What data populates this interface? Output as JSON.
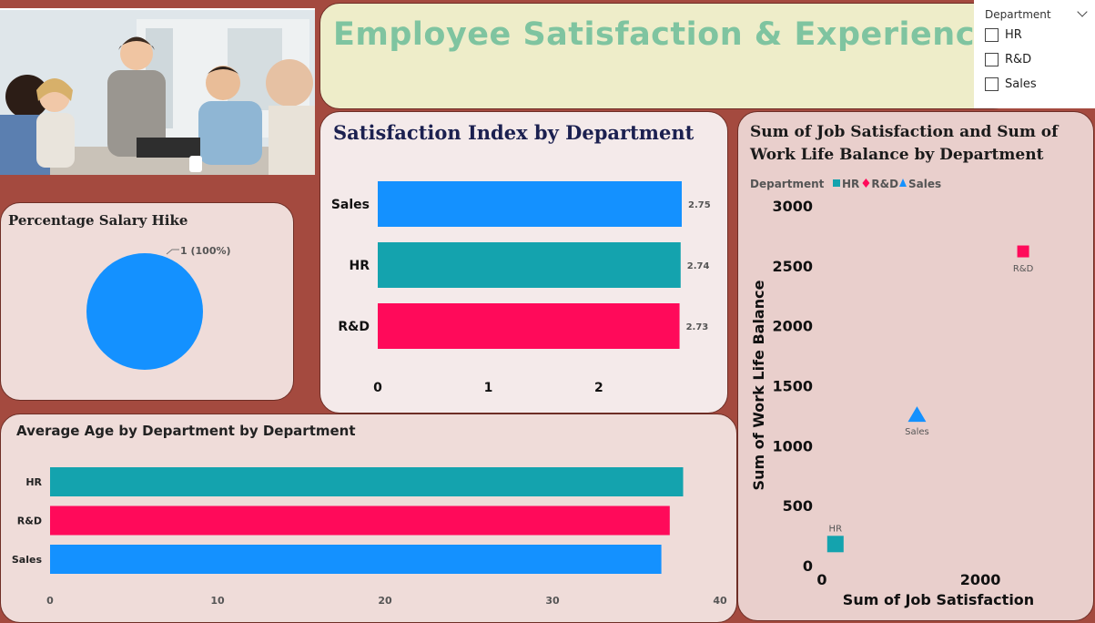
{
  "dashboard": {
    "title": "Employee Satisfaction & Experience",
    "photo_alt": "Team of employees laughing in an office"
  },
  "slicer": {
    "title": "Department",
    "options": [
      "HR",
      "R&D",
      "Sales"
    ]
  },
  "colors": {
    "HR": "#14a3ae",
    "R&D": "#ff0a5a",
    "Sales": "#1491ff"
  },
  "pie_title": "Percentage Salary Hike",
  "chart_data": [
    {
      "type": "bar",
      "id": "satisfaction-index",
      "title": "Satisfaction Index by Department",
      "categories": [
        "Sales",
        "HR",
        "R&D"
      ],
      "values": [
        2.75,
        2.74,
        2.73
      ],
      "value_labels": [
        "2.75",
        "2.74",
        "2.73"
      ],
      "xlim": [
        0,
        2.75
      ],
      "xticks": [
        0,
        1,
        2
      ]
    },
    {
      "type": "pie",
      "id": "salary-hike",
      "title": "Percentage Salary Hike",
      "slices": [
        {
          "label": "1 (100%)",
          "value": 100
        }
      ]
    },
    {
      "type": "bar",
      "id": "average-age",
      "title": "Average Age by Department by Department",
      "categories": [
        "HR",
        "R&D",
        "Sales"
      ],
      "values": [
        37.8,
        37.0,
        36.5
      ],
      "xlim": [
        0,
        40
      ],
      "xticks": [
        0,
        10,
        20,
        30,
        40
      ]
    },
    {
      "type": "scatter",
      "id": "job-vs-wlb",
      "title": "Sum of Job Satisfaction and Sum of Work Life Balance by Department",
      "xlabel": "Sum of Job Satisfaction",
      "ylabel": "Sum of Work Life Balance",
      "legend_title": "Department",
      "legend_position": "top-left",
      "xlim": [
        0,
        2700
      ],
      "ylim": [
        0,
        3000
      ],
      "xticks": [
        0,
        2000
      ],
      "yticks": [
        0,
        500,
        1000,
        1500,
        2000,
        2500,
        3000
      ],
      "series": [
        {
          "name": "HR",
          "marker": "square",
          "x": [
            170
          ],
          "y": [
            180
          ]
        },
        {
          "name": "R&D",
          "marker": "square",
          "x": [
            2540
          ],
          "y": [
            2620
          ]
        },
        {
          "name": "Sales",
          "marker": "triangle",
          "x": [
            1200
          ],
          "y": [
            1260
          ]
        }
      ]
    }
  ]
}
